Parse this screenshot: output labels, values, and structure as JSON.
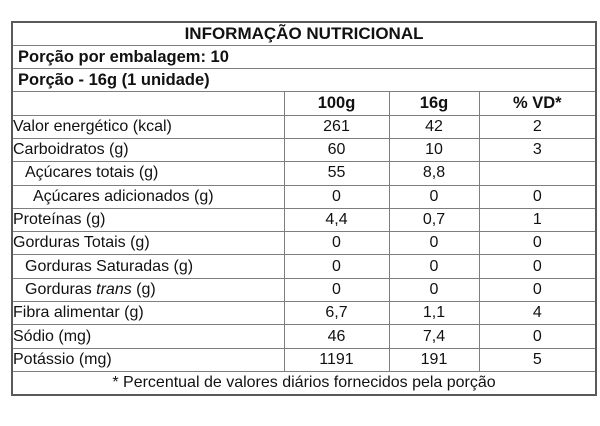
{
  "page": {
    "background": "#ffffff",
    "text_color": "#111111",
    "grid_line_color": "#7e7e7e",
    "outer_border_color": "#5a5a5a"
  },
  "table": {
    "title": "INFORMAÇÃO NUTRICIONAL",
    "serving_rows": [
      "Porção por embalagem: 10",
      "Porção - 16g (1 unidade)"
    ],
    "columns": [
      "",
      "100g",
      "16g",
      "% VD*"
    ],
    "rows": [
      {
        "label": "Valor energético (kcal)",
        "indent": 0,
        "per_100g": "261",
        "per_16g": "42",
        "pct_vd": "2"
      },
      {
        "label": "Carboidratos (g)",
        "indent": 0,
        "per_100g": "60",
        "per_16g": "10",
        "pct_vd": "3"
      },
      {
        "label": "Açúcares totais (g)",
        "indent": 1,
        "per_100g": "55",
        "per_16g": "8,8",
        "pct_vd": ""
      },
      {
        "label": "Açúcares adicionados (g)",
        "indent": 2,
        "per_100g": "0",
        "per_16g": "0",
        "pct_vd": "0"
      },
      {
        "label": "Proteínas (g)",
        "indent": 0,
        "per_100g": "4,4",
        "per_16g": "0,7",
        "pct_vd": "1"
      },
      {
        "label": "Gorduras Totais (g)",
        "indent": 0,
        "per_100g": "0",
        "per_16g": "0",
        "pct_vd": "0"
      },
      {
        "label": "Gorduras Saturadas (g)",
        "indent": 1,
        "per_100g": "0",
        "per_16g": "0",
        "pct_vd": "0"
      },
      {
        "label": "Gorduras trans (g)",
        "indent": 1,
        "italic": "trans",
        "per_100g": "0",
        "per_16g": "0",
        "pct_vd": "0"
      },
      {
        "label": "Fibra alimentar (g)",
        "indent": 0,
        "per_100g": "6,7",
        "per_16g": "1,1",
        "pct_vd": "4"
      },
      {
        "label": "Sódio (mg)",
        "indent": 0,
        "per_100g": "46",
        "per_16g": "7,4",
        "pct_vd": "0"
      },
      {
        "label": "Potássio (mg)",
        "indent": 0,
        "per_100g": "1191",
        "per_16g": "191",
        "pct_vd": "5"
      }
    ],
    "footnote": "* Percentual de valores diários fornecidos pela porção"
  }
}
